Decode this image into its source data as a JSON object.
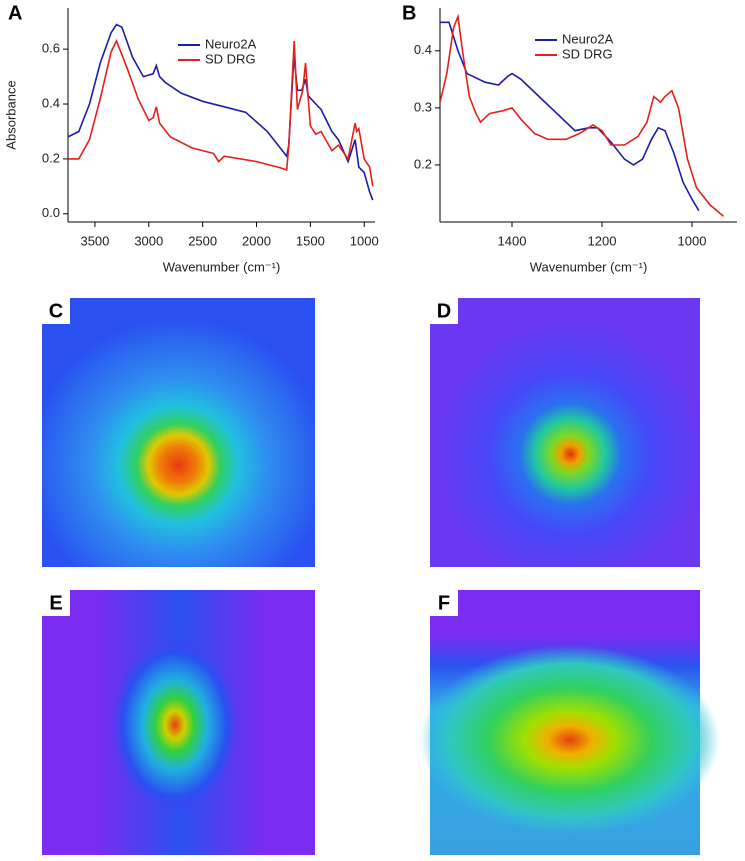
{
  "chart_data": [
    {
      "type": "line",
      "label": "A",
      "ylabel": "Absorbance",
      "xlabel": "Wavenumber (cm⁻¹)",
      "xlim": [
        3750,
        900
      ],
      "xticks": [
        3500,
        3000,
        2500,
        2000,
        1500,
        1000
      ],
      "ylim": [
        -0.03,
        0.75
      ],
      "yticks": [
        {
          "value": 0,
          "label": "0.0"
        },
        0.2,
        0.4,
        0.6
      ],
      "series": [
        {
          "name": "Neuro2A",
          "color": "#1c1ca8",
          "x": [
            3750,
            3650,
            3550,
            3450,
            3350,
            3300,
            3250,
            3150,
            3050,
            2960,
            2930,
            2900,
            2850,
            2700,
            2500,
            2300,
            2100,
            1900,
            1800,
            1720,
            1700,
            1660,
            1650,
            1620,
            1580,
            1545,
            1520,
            1450,
            1400,
            1300,
            1240,
            1150,
            1085,
            1050,
            1000,
            950,
            920
          ],
          "values": [
            0.28,
            0.3,
            0.4,
            0.55,
            0.66,
            0.69,
            0.68,
            0.57,
            0.5,
            0.51,
            0.54,
            0.5,
            0.48,
            0.44,
            0.41,
            0.39,
            0.37,
            0.3,
            0.25,
            0.21,
            0.25,
            0.52,
            0.57,
            0.45,
            0.45,
            0.49,
            0.43,
            0.4,
            0.38,
            0.3,
            0.27,
            0.19,
            0.27,
            0.17,
            0.15,
            0.08,
            0.05
          ]
        },
        {
          "name": "SD DRG",
          "color": "#e3201c",
          "x": [
            3750,
            3650,
            3550,
            3450,
            3350,
            3300,
            3200,
            3100,
            3000,
            2960,
            2930,
            2900,
            2800,
            2600,
            2400,
            2350,
            2300,
            2000,
            1800,
            1720,
            1700,
            1650,
            1620,
            1570,
            1545,
            1500,
            1450,
            1400,
            1300,
            1240,
            1150,
            1085,
            1070,
            1050,
            1000,
            950,
            920
          ],
          "values": [
            0.2,
            0.2,
            0.27,
            0.42,
            0.59,
            0.63,
            0.53,
            0.42,
            0.34,
            0.35,
            0.39,
            0.33,
            0.28,
            0.24,
            0.22,
            0.19,
            0.21,
            0.19,
            0.17,
            0.16,
            0.25,
            0.63,
            0.38,
            0.45,
            0.55,
            0.32,
            0.29,
            0.3,
            0.23,
            0.25,
            0.2,
            0.33,
            0.3,
            0.31,
            0.2,
            0.17,
            0.1
          ]
        }
      ]
    },
    {
      "type": "line",
      "label": "B",
      "xlabel": "Wavenumber (cm⁻¹)",
      "xlim": [
        1560,
        900
      ],
      "xticks": [
        1400,
        1200,
        1000
      ],
      "ylim": [
        0.1,
        0.475
      ],
      "yticks": [
        0.2,
        0.3,
        0.4
      ],
      "series": [
        {
          "name": "Neuro2A",
          "color": "#1c1ca8",
          "x": [
            1560,
            1540,
            1520,
            1500,
            1460,
            1430,
            1410,
            1400,
            1380,
            1340,
            1300,
            1260,
            1230,
            1210,
            1180,
            1150,
            1130,
            1110,
            1090,
            1075,
            1060,
            1040,
            1020,
            1000,
            985
          ],
          "values": [
            0.45,
            0.45,
            0.4,
            0.36,
            0.345,
            0.34,
            0.355,
            0.36,
            0.35,
            0.32,
            0.29,
            0.26,
            0.265,
            0.265,
            0.24,
            0.21,
            0.2,
            0.21,
            0.245,
            0.265,
            0.26,
            0.22,
            0.17,
            0.14,
            0.12
          ]
        },
        {
          "name": "SD DRG",
          "color": "#e3201c",
          "x": [
            1560,
            1545,
            1530,
            1520,
            1510,
            1495,
            1480,
            1470,
            1450,
            1420,
            1400,
            1380,
            1350,
            1320,
            1280,
            1250,
            1220,
            1200,
            1180,
            1150,
            1120,
            1100,
            1085,
            1070,
            1060,
            1045,
            1030,
            1010,
            990,
            960,
            930
          ],
          "values": [
            0.31,
            0.36,
            0.44,
            0.46,
            0.4,
            0.32,
            0.29,
            0.275,
            0.29,
            0.295,
            0.3,
            0.28,
            0.255,
            0.245,
            0.245,
            0.255,
            0.27,
            0.26,
            0.235,
            0.235,
            0.25,
            0.275,
            0.32,
            0.31,
            0.32,
            0.33,
            0.3,
            0.21,
            0.16,
            0.13,
            0.11
          ]
        }
      ]
    }
  ],
  "images": [
    {
      "label": "C"
    },
    {
      "label": "D"
    },
    {
      "label": "E"
    },
    {
      "label": "F"
    }
  ]
}
